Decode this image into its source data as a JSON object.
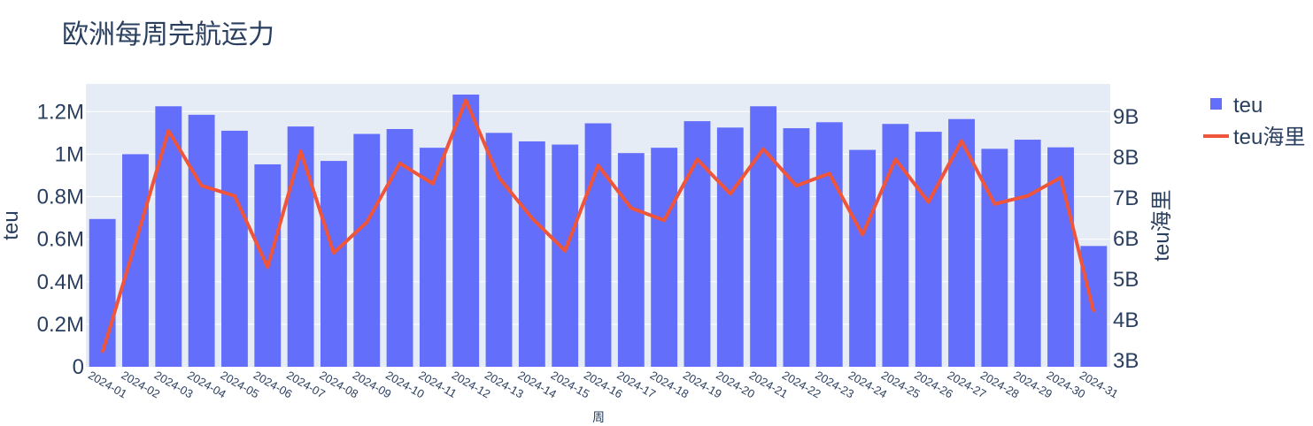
{
  "chart_data": {
    "type": "bar",
    "title": "欧洲每周完航运力",
    "xlabel": "周",
    "ylabel": "teu",
    "y2label": "teu海里",
    "categories": [
      "2024-01",
      "2024-02",
      "2024-03",
      "2024-04",
      "2024-05",
      "2024-06",
      "2024-07",
      "2024-08",
      "2024-09",
      "2024-10",
      "2024-11",
      "2024-12",
      "2024-13",
      "2024-14",
      "2024-15",
      "2024-16",
      "2024-17",
      "2024-18",
      "2024-19",
      "2024-20",
      "2024-21",
      "2024-22",
      "2024-23",
      "2024-24",
      "2024-25",
      "2024-26",
      "2024-27",
      "2024-28",
      "2024-29",
      "2024-30",
      "2024-31"
    ],
    "ylim": [
      0,
      1330000
    ],
    "y2lim": [
      2850000000,
      9800000000
    ],
    "yticks": [
      0,
      200000,
      400000,
      600000,
      800000,
      1000000,
      1200000
    ],
    "yticklabels": [
      "0",
      "0.2M",
      "0.4M",
      "0.6M",
      "0.8M",
      "1M",
      "1.2M"
    ],
    "y2ticks": [
      3000000000,
      4000000000,
      5000000000,
      6000000000,
      7000000000,
      8000000000,
      9000000000
    ],
    "y2ticklabels": [
      "3B",
      "4B",
      "5B",
      "6B",
      "7B",
      "8B",
      "9B"
    ],
    "grid": true,
    "legend_position": "top-right",
    "series": [
      {
        "name": "teu",
        "type": "bar",
        "axis": "y",
        "color": "#636efa",
        "values": [
          695000,
          1000000,
          1225000,
          1185000,
          1110000,
          952000,
          1130000,
          968000,
          1095000,
          1118000,
          1030000,
          1280000,
          1100000,
          1060000,
          1045000,
          1145000,
          1005000,
          1030000,
          1155000,
          1125000,
          1225000,
          1122000,
          1150000,
          1020000,
          1142000,
          1105000,
          1165000,
          1025000,
          1068000,
          1032000,
          568000
        ]
      },
      {
        "name": "teu海里",
        "type": "line",
        "axis": "y2",
        "color": "#ef553b",
        "values": [
          3200000000,
          5900000000,
          8650000000,
          7300000000,
          7050000000,
          5300000000,
          8150000000,
          5650000000,
          6400000000,
          7850000000,
          7350000000,
          9400000000,
          7500000000,
          6500000000,
          5700000000,
          7800000000,
          6750000000,
          6450000000,
          7950000000,
          7100000000,
          8200000000,
          7300000000,
          7600000000,
          6100000000,
          7950000000,
          6900000000,
          8400000000,
          6850000000,
          7050000000,
          7500000000,
          4200000000
        ]
      }
    ]
  }
}
